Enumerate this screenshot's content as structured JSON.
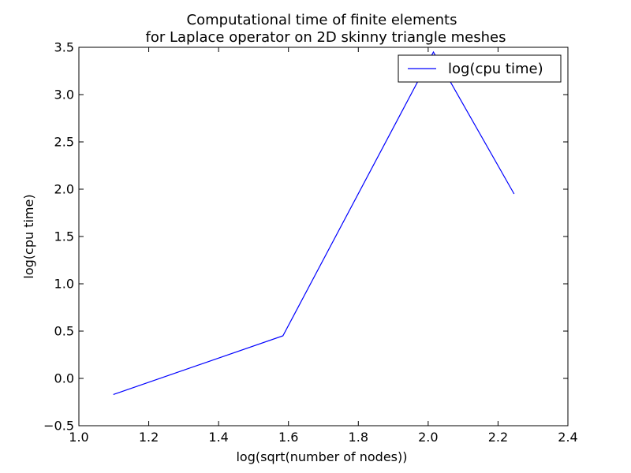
{
  "chart_data": {
    "type": "line",
    "title": [
      "Computational time of finite elements",
      "for Laplace operator on 2D skinny triangle meshes"
    ],
    "xlabel": "log(sqrt(number of nodes))",
    "ylabel": "log(cpu time)",
    "xlim": [
      1.0,
      2.4
    ],
    "ylim": [
      -0.5,
      3.5
    ],
    "xticks": [
      1.0,
      1.2,
      1.4,
      1.6,
      1.8,
      2.0,
      2.2,
      2.4
    ],
    "xtick_labels": [
      "1.0",
      "1.2",
      "1.4",
      "1.6",
      "1.8",
      "2.0",
      "2.2",
      "2.4"
    ],
    "yticks": [
      -0.5,
      0.0,
      0.5,
      1.0,
      1.5,
      2.0,
      2.5,
      3.0,
      3.5
    ],
    "ytick_labels": [
      "−0.5",
      "0.0",
      "0.5",
      "1.0",
      "1.5",
      "2.0",
      "2.5",
      "3.0",
      "3.5"
    ],
    "grid": false,
    "legend_position": "top-right",
    "series": [
      {
        "name": "log(cpu time)",
        "color": "#0000ff",
        "x": [
          1.0986,
          1.5841,
          2.0149,
          2.246
        ],
        "y": [
          -0.17,
          0.45,
          3.45,
          1.95
        ]
      }
    ]
  }
}
